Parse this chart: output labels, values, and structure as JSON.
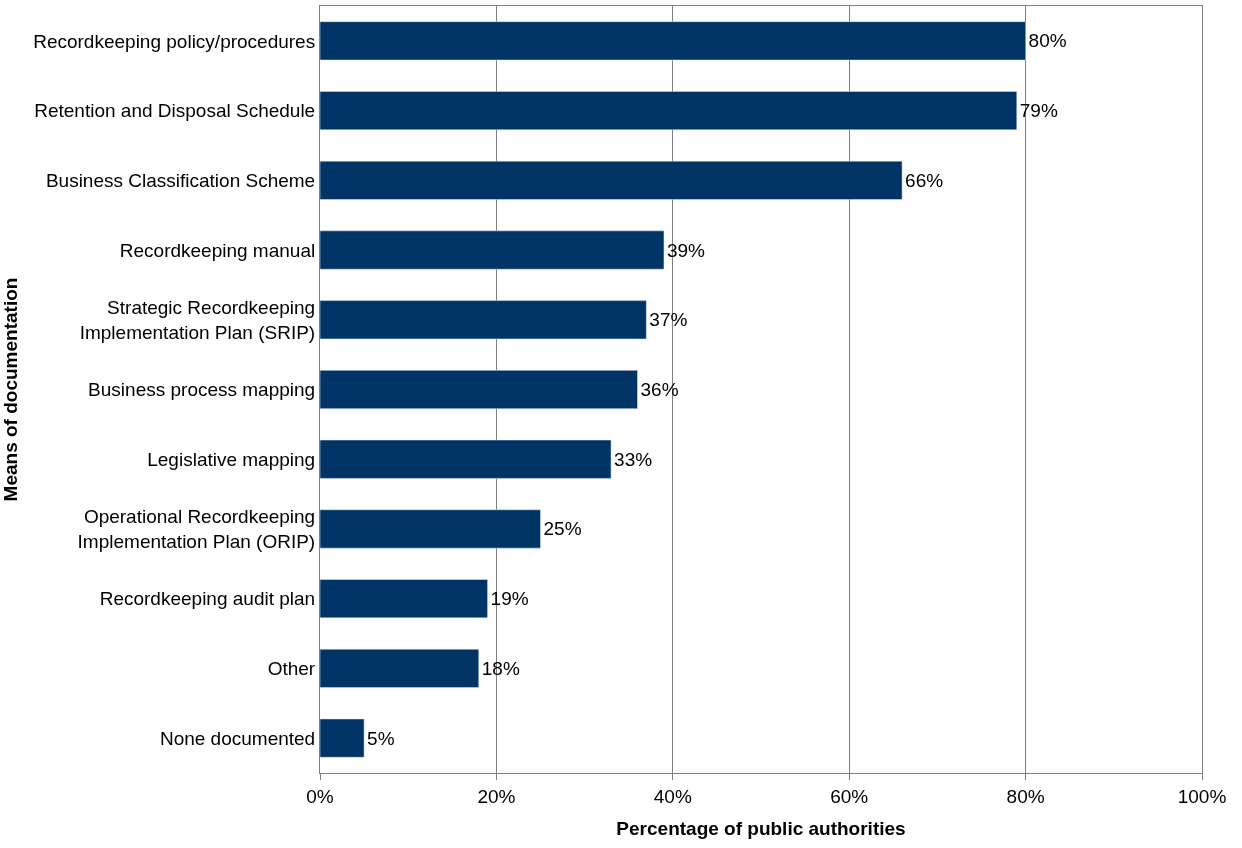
{
  "chart_data": {
    "type": "bar",
    "orientation": "horizontal",
    "xlabel": "Percentage of public authorities",
    "ylabel": "Means of documentation",
    "categories": [
      "Recordkeeping policy/procedures",
      "Retention and Disposal Schedule",
      "Business Classification Scheme",
      "Recordkeeping manual",
      "Strategic Recordkeeping\nImplementation Plan (SRIP)",
      "Business process mapping",
      "Legislative mapping",
      "Operational Recordkeeping\nImplementation Plan (ORIP)",
      "Recordkeeping audit plan",
      "Other",
      "None documented"
    ],
    "values": [
      80,
      79,
      66,
      39,
      37,
      36,
      33,
      25,
      19,
      18,
      5
    ],
    "value_labels": [
      "80%",
      "79%",
      "66%",
      "39%",
      "37%",
      "36%",
      "33%",
      "25%",
      "19%",
      "18%",
      "5%"
    ],
    "color": "#003366",
    "xlim": [
      0,
      100
    ],
    "xticks": [
      {
        "value": 0,
        "label": "0%"
      },
      {
        "value": 20,
        "label": "20%"
      },
      {
        "value": 40,
        "label": "40%"
      },
      {
        "value": 60,
        "label": "60%"
      },
      {
        "value": 80,
        "label": "80%"
      },
      {
        "value": 100,
        "label": "100%"
      }
    ],
    "grid": "x",
    "legend": false
  }
}
